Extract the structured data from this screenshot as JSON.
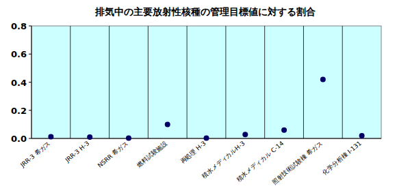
{
  "chart_data": {
    "type": "scatter",
    "title": "排気中の主要放射性核種の管理目標値に対する割合",
    "categories": [
      "JRR-3 希ガス",
      "JRR-3 H-3",
      "NSRR 希ガス",
      "燃料試験施設",
      "再処理 H-3",
      "積水メディカルH-3",
      "積水メディカル C-14",
      "照射技術試験棟 希ガス",
      "化学分析棟 I-131"
    ],
    "values": [
      0.012,
      0.01,
      0.003,
      0.1,
      0.002,
      0.028,
      0.06,
      0.42,
      0.02
    ],
    "color": "#000066",
    "marker": "circle",
    "ylim": [
      0,
      0.8
    ],
    "yticks": [
      {
        "value": 0,
        "label": "0.0"
      },
      0.2,
      0.4,
      0.6,
      0.8
    ],
    "grid": true
  }
}
